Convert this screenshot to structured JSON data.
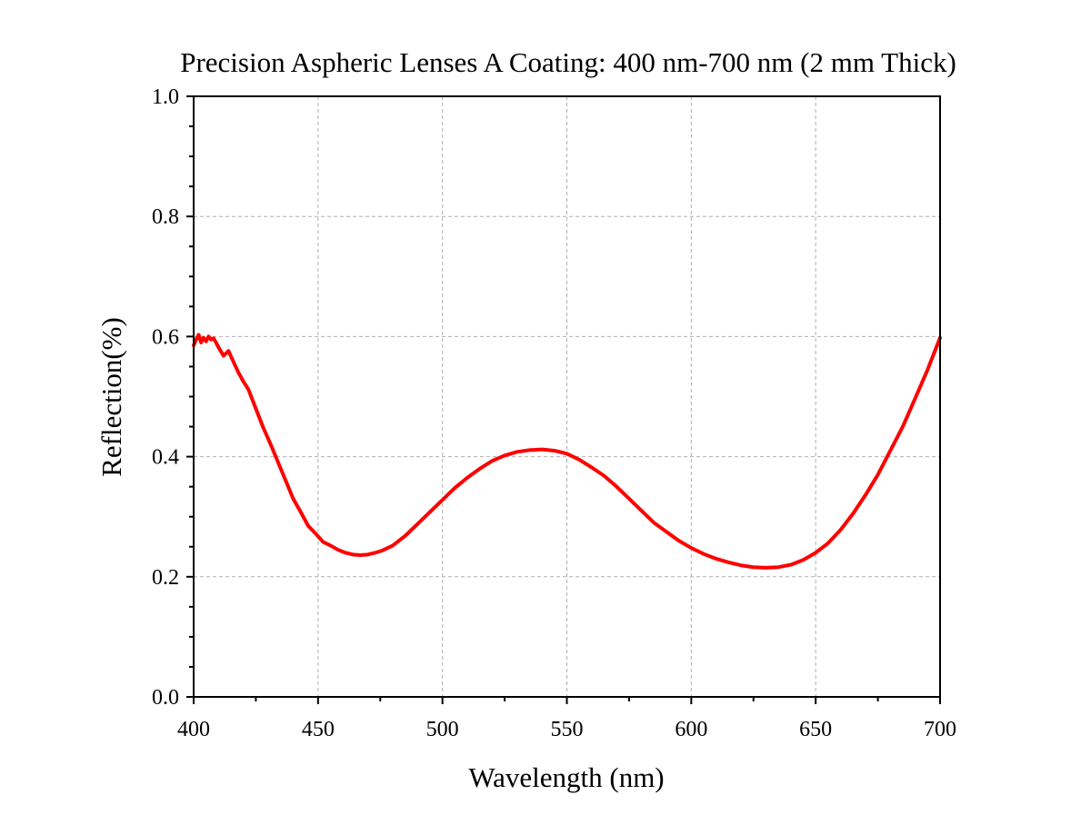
{
  "chart_data": {
    "type": "line",
    "title": "Precision Aspheric Lenses A Coating: 400 nm-700 nm (2 mm Thick)",
    "xlabel": "Wavelength (nm)",
    "ylabel": "Reflection(%)",
    "xlim": [
      400,
      700
    ],
    "ylim": [
      0.0,
      1.0
    ],
    "xticks": [
      400,
      450,
      500,
      550,
      600,
      650,
      700
    ],
    "yticks": [
      0.0,
      0.2,
      0.4,
      0.6,
      0.8,
      1.0
    ],
    "xtick_labels": [
      "400",
      "450",
      "500",
      "550",
      "600",
      "650",
      "700"
    ],
    "ytick_labels": [
      "0.0",
      "0.2",
      "0.4",
      "0.6",
      "0.8",
      "1.0"
    ],
    "grid": true,
    "legend": "none",
    "series": [
      {
        "color": "#ff0000",
        "x": [
          400,
          401,
          402,
          403,
          404,
          405,
          406,
          407,
          408,
          409,
          410,
          412,
          414,
          416,
          418,
          420,
          422,
          425,
          428,
          431,
          434,
          437,
          440,
          443,
          446,
          449,
          452,
          455,
          458,
          461,
          464,
          467,
          470,
          473,
          476,
          480,
          485,
          490,
          495,
          500,
          505,
          510,
          515,
          520,
          525,
          530,
          535,
          540,
          545,
          550,
          555,
          560,
          565,
          570,
          575,
          580,
          585,
          590,
          595,
          600,
          605,
          610,
          615,
          620,
          625,
          630,
          635,
          640,
          645,
          650,
          655,
          660,
          665,
          670,
          675,
          680,
          685,
          690,
          695,
          700
        ],
        "y": [
          0.585,
          0.595,
          0.603,
          0.59,
          0.598,
          0.592,
          0.6,
          0.595,
          0.597,
          0.59,
          0.582,
          0.568,
          0.576,
          0.558,
          0.54,
          0.525,
          0.512,
          0.48,
          0.448,
          0.42,
          0.39,
          0.36,
          0.33,
          0.308,
          0.285,
          0.272,
          0.258,
          0.252,
          0.245,
          0.24,
          0.237,
          0.236,
          0.237,
          0.24,
          0.244,
          0.252,
          0.268,
          0.288,
          0.308,
          0.328,
          0.348,
          0.365,
          0.38,
          0.393,
          0.402,
          0.408,
          0.411,
          0.412,
          0.41,
          0.405,
          0.395,
          0.382,
          0.368,
          0.35,
          0.33,
          0.31,
          0.29,
          0.275,
          0.26,
          0.248,
          0.238,
          0.23,
          0.224,
          0.219,
          0.216,
          0.215,
          0.216,
          0.22,
          0.228,
          0.24,
          0.256,
          0.278,
          0.305,
          0.336,
          0.37,
          0.41,
          0.45,
          0.497,
          0.545,
          0.598
        ]
      }
    ]
  }
}
